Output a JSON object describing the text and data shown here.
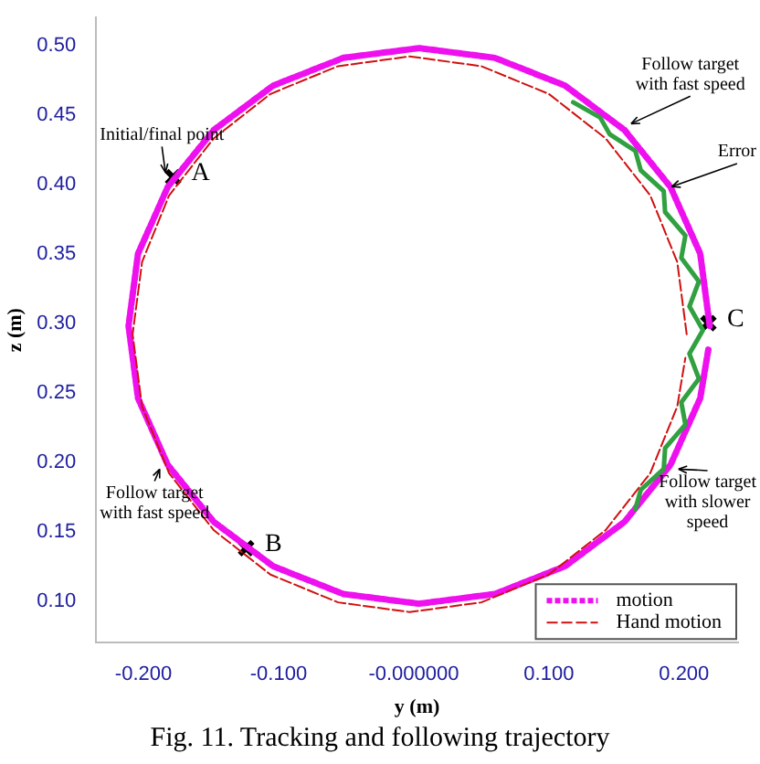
{
  "chart_data": {
    "type": "line",
    "xlabel": "y (m)",
    "ylabel": "z (m)",
    "xlim": [
      -0.235,
      0.24
    ],
    "ylim": [
      0.07,
      0.52
    ],
    "xticks": [
      {
        "value": -0.2,
        "label": "-0.200"
      },
      {
        "value": -0.1,
        "label": "-0.100"
      },
      {
        "value": 0,
        "label": "-0.000000"
      },
      {
        "value": 0.1,
        "label": "0.100"
      },
      {
        "value": 0.2,
        "label": "0.200"
      }
    ],
    "yticks": [
      {
        "value": 0.1,
        "label": "0.10"
      },
      {
        "value": 0.15,
        "label": "0.15"
      },
      {
        "value": 0.2,
        "label": "0.20"
      },
      {
        "value": 0.25,
        "label": "0.25"
      },
      {
        "value": 0.3,
        "label": "0.30"
      },
      {
        "value": 0.35,
        "label": "0.35"
      },
      {
        "value": 0.4,
        "label": "0.40"
      },
      {
        "value": 0.45,
        "label": "0.45"
      },
      {
        "value": 0.5,
        "label": "0.50"
      }
    ],
    "grid": false,
    "legend": "bottom right",
    "series": [
      {
        "name": "Hand motion",
        "color": "#d01010",
        "line_style": "dashed",
        "marker": "none",
        "x": [
          0.202,
          0.195,
          0.175,
          0.142,
          0.1,
          0.05,
          -0.003,
          -0.056,
          -0.106,
          -0.148,
          -0.181,
          -0.201,
          -0.208,
          -0.201,
          -0.181,
          -0.148,
          -0.106,
          -0.056,
          -0.003,
          0.05,
          0.1,
          0.142,
          0.175,
          0.195,
          0.201
        ],
        "values": [
          0.292,
          0.344,
          0.392,
          0.433,
          0.465,
          0.485,
          0.492,
          0.485,
          0.465,
          0.433,
          0.392,
          0.344,
          0.292,
          0.24,
          0.192,
          0.151,
          0.119,
          0.099,
          0.092,
          0.099,
          0.119,
          0.151,
          0.192,
          0.24,
          0.275
        ]
      },
      {
        "color": "#30a040",
        "line_style": "solid",
        "marker": "none",
        "x": [
          0.118,
          0.138,
          0.145,
          0.164,
          0.168,
          0.185,
          0.186,
          0.201,
          0.198,
          0.211,
          0.204,
          0.214,
          0.204,
          0.211,
          0.198,
          0.201,
          0.186,
          0.185,
          0.168,
          0.164
        ],
        "values": [
          0.459,
          0.448,
          0.436,
          0.424,
          0.41,
          0.395,
          0.38,
          0.363,
          0.347,
          0.33,
          0.312,
          0.295,
          0.278,
          0.26,
          0.243,
          0.227,
          0.21,
          0.195,
          0.18,
          0.166
        ]
      },
      {
        "name": "motion",
        "color": "#ee10ee",
        "line_style": "dotted",
        "marker": "none",
        "x": [
          0.219,
          0.212,
          0.19,
          0.156,
          0.112,
          0.06,
          0.004,
          -0.052,
          -0.104,
          -0.148,
          -0.182,
          -0.204,
          -0.211,
          -0.204,
          -0.182,
          -0.148,
          -0.104,
          -0.052,
          0.004,
          0.06,
          0.112,
          0.156,
          0.19,
          0.212,
          0.218
        ],
        "values": [
          0.298,
          0.35,
          0.398,
          0.439,
          0.471,
          0.491,
          0.498,
          0.491,
          0.471,
          0.439,
          0.398,
          0.35,
          0.298,
          0.246,
          0.198,
          0.157,
          0.125,
          0.105,
          0.098,
          0.105,
          0.125,
          0.157,
          0.198,
          0.246,
          0.281
        ]
      },
      {
        "type": "scatter",
        "color": "#000000",
        "marker": "cross",
        "x": [
          -0.178,
          -0.124,
          0.218
        ],
        "values": [
          0.405,
          0.138,
          0.3
        ]
      }
    ],
    "annotations": [
      {
        "text": "A",
        "x": -0.178,
        "y": 0.405
      },
      {
        "text": "B",
        "x": -0.124,
        "y": 0.138
      },
      {
        "text": "C",
        "x": 0.218,
        "y": 0.3
      },
      {
        "text": "Initial/final point",
        "x": -0.178,
        "y": 0.405
      },
      {
        "text": "Follow target with fast speed",
        "x": 0.156,
        "y": 0.439
      },
      {
        "text": "Error",
        "x": 0.185,
        "y": 0.395
      },
      {
        "text": "Follow target with slower speed",
        "x": 0.19,
        "y": 0.198
      },
      {
        "text": "Follow target with fast speed",
        "x": -0.182,
        "y": 0.198
      },
      "Fig. 11. Tracking and following trajectory"
    ]
  }
}
